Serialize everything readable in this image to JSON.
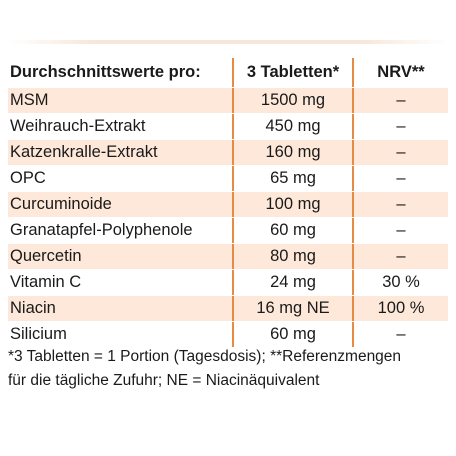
{
  "table": {
    "headers": {
      "name": "Durchschnittswerte pro:",
      "dose": "3 Tabletten*",
      "nrv": "NRV**"
    },
    "rows": [
      {
        "name": "MSM",
        "dose": "1500 mg",
        "nrv": "–"
      },
      {
        "name": "Weihrauch-Extrakt",
        "dose": "450 mg",
        "nrv": "–"
      },
      {
        "name": "Katzenkralle-Extrakt",
        "dose": "160 mg",
        "nrv": "–"
      },
      {
        "name": "OPC",
        "dose": "65 mg",
        "nrv": "–"
      },
      {
        "name": "Curcuminoide",
        "dose": "100 mg",
        "nrv": "–"
      },
      {
        "name": "Granatapfel-Polyphenole",
        "dose": "60 mg",
        "nrv": "–"
      },
      {
        "name": "Quercetin",
        "dose": "80 mg",
        "nrv": "–"
      },
      {
        "name": "Vitamin C",
        "dose": "24 mg",
        "nrv": "30 %"
      },
      {
        "name": "Niacin",
        "dose": "16 mg NE",
        "nrv": "100 %"
      },
      {
        "name": "Silicium",
        "dose": "60 mg",
        "nrv": "–"
      }
    ]
  },
  "footnote": {
    "line1": "*3 Tabletten = 1 Portion (Tagesdosis); **Referenzmengen",
    "line2": "für die tägliche Zufuhr; NE = Niacinäquivalent"
  },
  "colors": {
    "row_shade": "#fde8da",
    "divider": "#e58b43"
  }
}
